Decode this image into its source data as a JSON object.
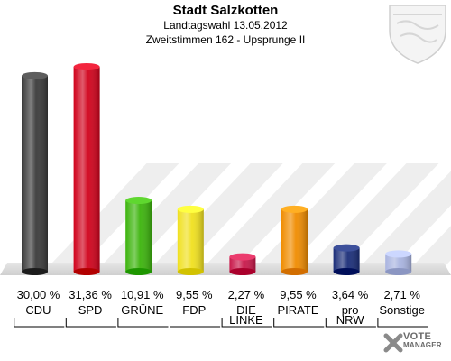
{
  "header": {
    "title": "Stadt Salzkotten",
    "subtitle": "Landtagswahl 13.05.2012",
    "subtitle2": "Zweitstimmen 162 - Upsprunge II"
  },
  "branding": {
    "line1": "VOTE",
    "line2": "MANAGER"
  },
  "chart_data": {
    "type": "bar",
    "categories": [
      "CDU",
      "SPD",
      "GRÜNE",
      "FDP",
      "DIE LINKE",
      "PIRATE",
      "pro NRW",
      "Sonstige"
    ],
    "category_lines": [
      [
        "CDU"
      ],
      [
        "SPD"
      ],
      [
        "GRÜNE"
      ],
      [
        "FDP"
      ],
      [
        "DIE",
        "LINKE"
      ],
      [
        "PIRATE"
      ],
      [
        "pro",
        "NRW"
      ],
      [
        "Sonstige"
      ]
    ],
    "values": [
      30.0,
      31.36,
      10.91,
      9.55,
      2.27,
      9.55,
      3.64,
      2.71
    ],
    "value_labels": [
      "30,00 %",
      "31,36 %",
      "10,91 %",
      "9,55 %",
      "2,27 %",
      "9,55 %",
      "3,64 %",
      "2,71 %"
    ],
    "colors": [
      "#3a3a3a",
      "#d0021b",
      "#3cb40c",
      "#f0e01e",
      "#c8184a",
      "#f08c00",
      "#1a2d78",
      "#a9b4e0"
    ],
    "ylim": [
      0,
      32
    ],
    "grid": false
  }
}
